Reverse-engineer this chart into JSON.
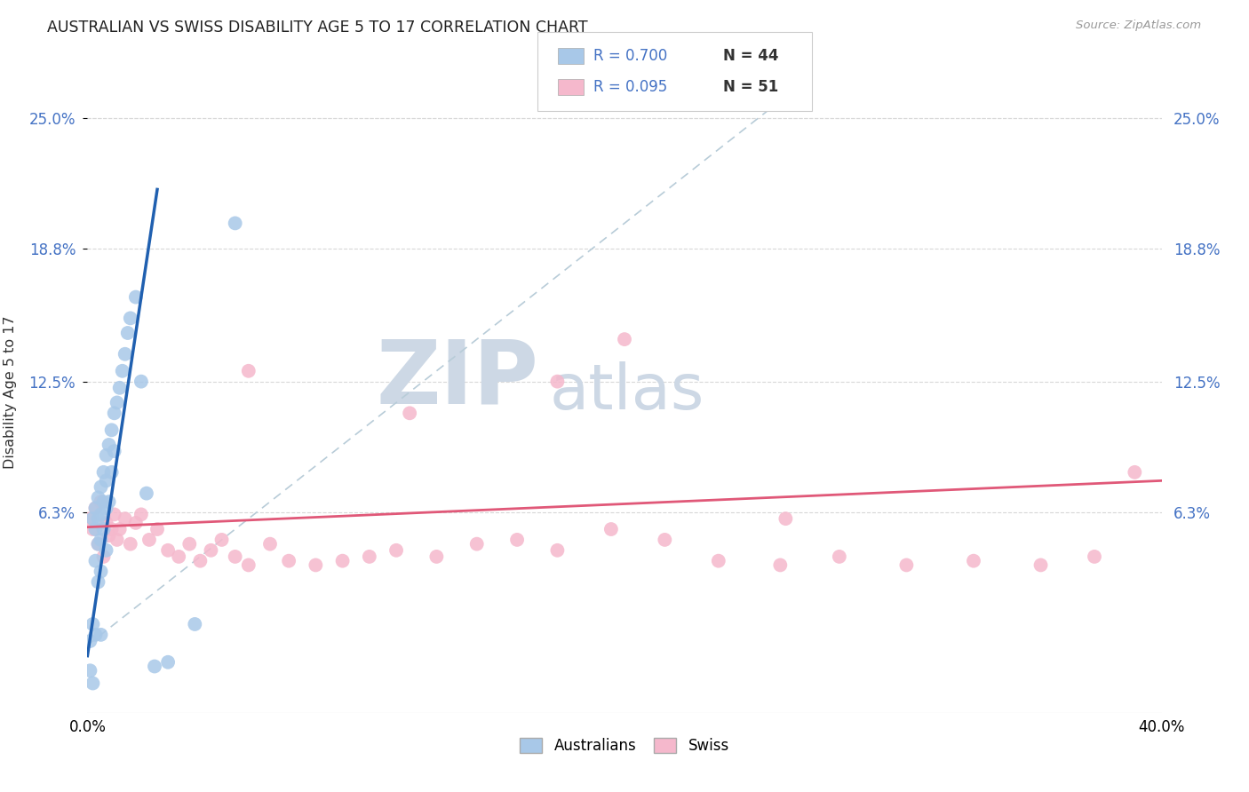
{
  "title": "AUSTRALIAN VS SWISS DISABILITY AGE 5 TO 17 CORRELATION CHART",
  "source": "Source: ZipAtlas.com",
  "ylabel": "Disability Age 5 to 17",
  "ytick_vals": [
    0.063,
    0.125,
    0.188,
    0.25
  ],
  "ytick_labels": [
    "6.3%",
    "12.5%",
    "18.8%",
    "25.0%"
  ],
  "xlim": [
    0.0,
    0.4
  ],
  "ylim": [
    -0.032,
    0.272
  ],
  "legend_aus_R": "R = 0.700",
  "legend_aus_N": "N = 44",
  "legend_swiss_R": "R = 0.095",
  "legend_swiss_N": "N = 51",
  "legend_aus_label": "Australians",
  "legend_swiss_label": "Swiss",
  "aus_color": "#a8c8e8",
  "swiss_color": "#f5b8cc",
  "aus_line_color": "#2060b0",
  "swiss_line_color": "#e05878",
  "ref_line_color": "#b8ccd8",
  "grid_color": "#d8d8d8",
  "tick_color": "#4472c4",
  "aus_x": [
    0.001,
    0.001,
    0.002,
    0.002,
    0.002,
    0.003,
    0.003,
    0.003,
    0.003,
    0.004,
    0.004,
    0.004,
    0.004,
    0.005,
    0.005,
    0.005,
    0.005,
    0.005,
    0.006,
    0.006,
    0.006,
    0.007,
    0.007,
    0.007,
    0.007,
    0.008,
    0.008,
    0.009,
    0.009,
    0.01,
    0.01,
    0.011,
    0.012,
    0.013,
    0.014,
    0.015,
    0.016,
    0.018,
    0.02,
    0.022,
    0.025,
    0.03,
    0.04,
    0.055
  ],
  "aus_y": [
    0.002,
    -0.012,
    0.06,
    0.01,
    -0.018,
    0.065,
    0.055,
    0.04,
    0.005,
    0.07,
    0.048,
    0.06,
    0.03,
    0.075,
    0.062,
    0.05,
    0.035,
    0.005,
    0.082,
    0.068,
    0.055,
    0.09,
    0.078,
    0.065,
    0.045,
    0.095,
    0.068,
    0.102,
    0.082,
    0.11,
    0.092,
    0.115,
    0.122,
    0.13,
    0.138,
    0.148,
    0.155,
    0.165,
    0.125,
    0.072,
    -0.01,
    -0.008,
    0.01,
    0.2
  ],
  "swiss_x": [
    0.001,
    0.002,
    0.003,
    0.004,
    0.005,
    0.006,
    0.007,
    0.008,
    0.009,
    0.01,
    0.011,
    0.012,
    0.014,
    0.016,
    0.018,
    0.02,
    0.023,
    0.026,
    0.03,
    0.034,
    0.038,
    0.042,
    0.046,
    0.05,
    0.055,
    0.06,
    0.068,
    0.075,
    0.085,
    0.095,
    0.105,
    0.115,
    0.13,
    0.145,
    0.16,
    0.175,
    0.195,
    0.215,
    0.235,
    0.258,
    0.28,
    0.305,
    0.33,
    0.355,
    0.375,
    0.39,
    0.06,
    0.12,
    0.2,
    0.26,
    0.175
  ],
  "swiss_y": [
    0.06,
    0.055,
    0.065,
    0.048,
    0.068,
    0.042,
    0.058,
    0.052,
    0.055,
    0.062,
    0.05,
    0.055,
    0.06,
    0.048,
    0.058,
    0.062,
    0.05,
    0.055,
    0.045,
    0.042,
    0.048,
    0.04,
    0.045,
    0.05,
    0.042,
    0.038,
    0.048,
    0.04,
    0.038,
    0.04,
    0.042,
    0.045,
    0.042,
    0.048,
    0.05,
    0.045,
    0.055,
    0.05,
    0.04,
    0.038,
    0.042,
    0.038,
    0.04,
    0.038,
    0.042,
    0.082,
    0.13,
    0.11,
    0.145,
    0.06,
    0.125
  ],
  "aus_slope": 8.5,
  "aus_intercept": -0.005,
  "swiss_slope": 0.055,
  "swiss_intercept": 0.056
}
